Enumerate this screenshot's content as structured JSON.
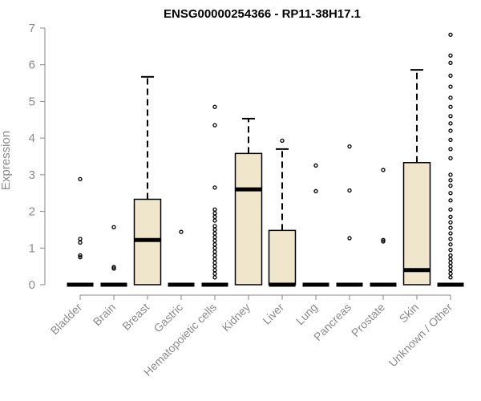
{
  "chart_data": {
    "type": "box",
    "title": "ENSG00000254366 - RP11-38H17.1",
    "ylabel": "Expression",
    "xlabel": "",
    "ylim": [
      0,
      7
    ],
    "yticks": [
      0,
      1,
      2,
      3,
      4,
      5,
      6,
      7
    ],
    "grid": false,
    "box_fill": "#efe6cc",
    "outline_color": "#000000",
    "axis_color": "#8a8a8a",
    "categories": [
      "Bladder",
      "Brain",
      "Breast",
      "Gastric",
      "Hematopoietic cells",
      "Kidney",
      "Liver",
      "Lung",
      "Pancreas",
      "Prostate",
      "Skin",
      "Unknown / Other"
    ],
    "boxes": [
      {
        "name": "Bladder",
        "q1": 0,
        "median": 0,
        "q3": 0,
        "whisker_low": 0,
        "whisker_high": 0,
        "outliers": [
          0.75,
          0.8,
          1.15,
          1.25,
          2.88
        ]
      },
      {
        "name": "Brain",
        "q1": 0,
        "median": 0,
        "q3": 0,
        "whisker_low": 0,
        "whisker_high": 0,
        "outliers": [
          0.44,
          0.48,
          1.57
        ]
      },
      {
        "name": "Breast",
        "q1": 0,
        "median": 1.22,
        "q3": 2.33,
        "whisker_low": 0,
        "whisker_high": 5.67,
        "outliers": []
      },
      {
        "name": "Gastric",
        "q1": 0,
        "median": 0,
        "q3": 0,
        "whisker_low": 0,
        "whisker_high": 0,
        "outliers": [
          1.44
        ]
      },
      {
        "name": "Hematopoietic cells",
        "q1": 0,
        "median": 0,
        "q3": 0,
        "whisker_low": 0,
        "whisker_high": 0,
        "outliers": [
          0.2,
          0.3,
          0.4,
          0.5,
          0.6,
          0.7,
          0.8,
          0.9,
          1.0,
          1.1,
          1.2,
          1.3,
          1.4,
          1.5,
          1.6,
          1.75,
          1.85,
          1.95,
          2.05,
          2.65,
          4.35,
          4.85
        ]
      },
      {
        "name": "Kidney",
        "q1": 0,
        "median": 2.6,
        "q3": 3.58,
        "whisker_low": 0,
        "whisker_high": 4.53,
        "outliers": []
      },
      {
        "name": "Liver",
        "q1": 0,
        "median": 0,
        "q3": 1.48,
        "whisker_low": 0,
        "whisker_high": 3.7,
        "outliers": [
          3.93
        ]
      },
      {
        "name": "Lung",
        "q1": 0,
        "median": 0,
        "q3": 0,
        "whisker_low": 0,
        "whisker_high": 0,
        "outliers": [
          2.55,
          3.25
        ]
      },
      {
        "name": "Pancreas",
        "q1": 0,
        "median": 0,
        "q3": 0,
        "whisker_low": 0,
        "whisker_high": 0,
        "outliers": [
          1.27,
          2.57,
          3.77
        ]
      },
      {
        "name": "Prostate",
        "q1": 0,
        "median": 0,
        "q3": 0,
        "whisker_low": 0,
        "whisker_high": 0,
        "outliers": [
          1.18,
          1.22,
          3.13
        ]
      },
      {
        "name": "Skin",
        "q1": 0,
        "median": 0.4,
        "q3": 3.33,
        "whisker_low": 0,
        "whisker_high": 5.86,
        "outliers": []
      },
      {
        "name": "Unknown / Other",
        "q1": 0,
        "median": 0,
        "q3": 0,
        "whisker_low": 0,
        "whisker_high": 0,
        "outliers": [
          0.2,
          0.3,
          0.4,
          0.5,
          0.6,
          0.7,
          0.8,
          0.95,
          1.1,
          1.25,
          1.4,
          1.55,
          1.7,
          1.85,
          2.05,
          2.3,
          2.5,
          2.7,
          2.85,
          3.0,
          3.45,
          3.7,
          3.95,
          4.2,
          4.4,
          4.6,
          4.85,
          5.1,
          5.4,
          5.7,
          6.05,
          6.25,
          6.82
        ]
      }
    ]
  }
}
